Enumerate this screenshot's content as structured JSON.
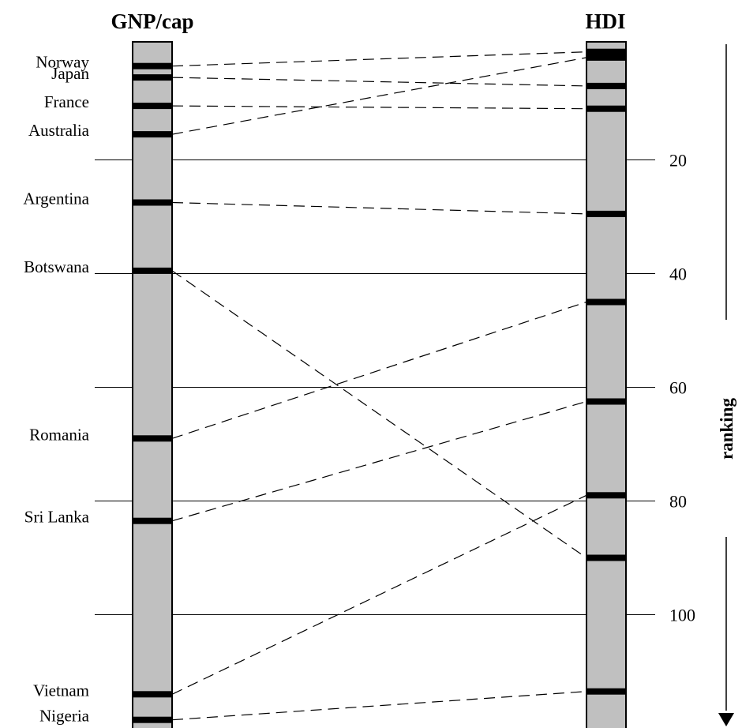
{
  "columns": {
    "left_title": "GNP/cap",
    "right_title": "HDI"
  },
  "axis": {
    "title": "ranking",
    "ticks": [
      {
        "label": "20",
        "rank": 20
      },
      {
        "label": "40",
        "rank": 40
      },
      {
        "label": "60",
        "rank": 60
      },
      {
        "label": "80",
        "rank": 80
      },
      {
        "label": "100",
        "rank": 100
      }
    ]
  },
  "colors": {
    "bar_fill": "#c0c0c0",
    "marker": "#000000",
    "line": "#000000",
    "background": "#ffffff"
  },
  "chart_data": {
    "type": "slope",
    "left_label": "GNP/cap",
    "right_label": "HDI",
    "axis_label": "ranking",
    "countries": [
      {
        "name": "Norway",
        "gnp_rank": 3.5,
        "hdi_rank": 1
      },
      {
        "name": "Japan",
        "gnp_rank": 5.5,
        "hdi_rank": 7
      },
      {
        "name": "France",
        "gnp_rank": 10.5,
        "hdi_rank": 11
      },
      {
        "name": "Australia",
        "gnp_rank": 15.5,
        "hdi_rank": 2
      },
      {
        "name": "Argentina",
        "gnp_rank": 27.5,
        "hdi_rank": 29.5
      },
      {
        "name": "Botswana",
        "gnp_rank": 39.5,
        "hdi_rank": 90
      },
      {
        "name": "Romania",
        "gnp_rank": 69,
        "hdi_rank": 45
      },
      {
        "name": "Sri Lanka",
        "gnp_rank": 83.5,
        "hdi_rank": 62.5
      },
      {
        "name": "Vietnam",
        "gnp_rank": 114,
        "hdi_rank": 79
      },
      {
        "name": "Nigeria",
        "gnp_rank": 118.5,
        "hdi_rank": 113.5
      }
    ]
  }
}
